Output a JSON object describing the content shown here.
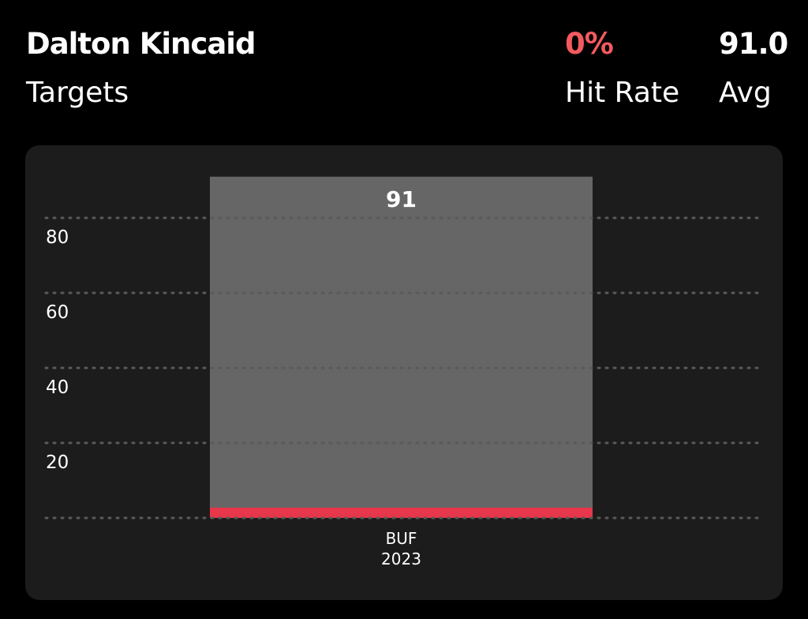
{
  "header": {
    "player_name": "Dalton Kincaid",
    "stat_label": "Targets",
    "hit_rate_value": "0%",
    "hit_rate_label": "Hit Rate",
    "avg_value": "91.0",
    "avg_label": "Avg"
  },
  "colors": {
    "hit_rate": "#f25a5f",
    "bar": "#666666",
    "baseline": "#e8364a",
    "grid": "#5a5a5a",
    "card_bg": "#1c1c1c"
  },
  "chart_data": {
    "type": "bar",
    "categories": [
      "BUF"
    ],
    "category_sublabels": [
      "2023"
    ],
    "values": [
      91
    ],
    "data_labels": [
      "91"
    ],
    "yticks": [
      20,
      40,
      60,
      80
    ],
    "ylim": [
      0,
      91
    ],
    "grid": true,
    "legend": "none"
  }
}
